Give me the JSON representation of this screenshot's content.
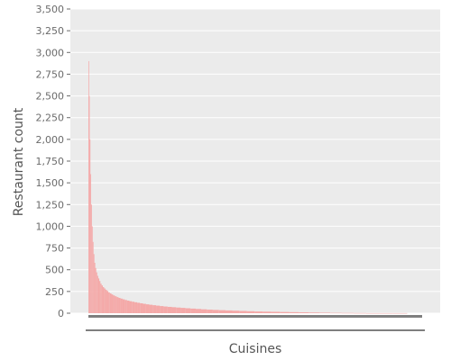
{
  "chart_data": {
    "type": "bar",
    "xlabel": "Cuisines",
    "ylabel": "Restaurant count",
    "ylim": [
      0,
      3500
    ],
    "y_ticks": [
      "0",
      "250",
      "500",
      "750",
      "1,000",
      "1,250",
      "1,500",
      "1,750",
      "2,000",
      "2,250",
      "2,500",
      "2,750",
      "3,000",
      "3,250",
      "3,500"
    ],
    "y_tick_values": [
      0,
      250,
      500,
      750,
      1000,
      1250,
      1500,
      1750,
      2000,
      2250,
      2500,
      2750,
      3000,
      3250,
      3500
    ],
    "x_tick_labels_shown": false,
    "sorted": "descending",
    "category_count": 2200,
    "series": [
      {
        "values": [
          2900,
          2500,
          2000,
          1600,
          1250,
          1000,
          820,
          680,
          580,
          520,
          470,
          430,
          400,
          370,
          340,
          320,
          300,
          285,
          270,
          255,
          240,
          228,
          216,
          205,
          195,
          185,
          176,
          168,
          160,
          152,
          145,
          138,
          132,
          126,
          120,
          114,
          108,
          102,
          97,
          92,
          87,
          82,
          77,
          73,
          69,
          65,
          61,
          57,
          53,
          49,
          45,
          41,
          38,
          35,
          32,
          29,
          26,
          23,
          20,
          18,
          16,
          14,
          12,
          10,
          8,
          6,
          4,
          3,
          2,
          1,
          1,
          1,
          0
        ]
      }
    ],
    "grid": true,
    "legend": "none",
    "colors": {
      "bars": "#f4a9a8",
      "panel": "#ebebeb",
      "grid": "#ffffff",
      "axis_bar": "#7f7f7f"
    }
  }
}
